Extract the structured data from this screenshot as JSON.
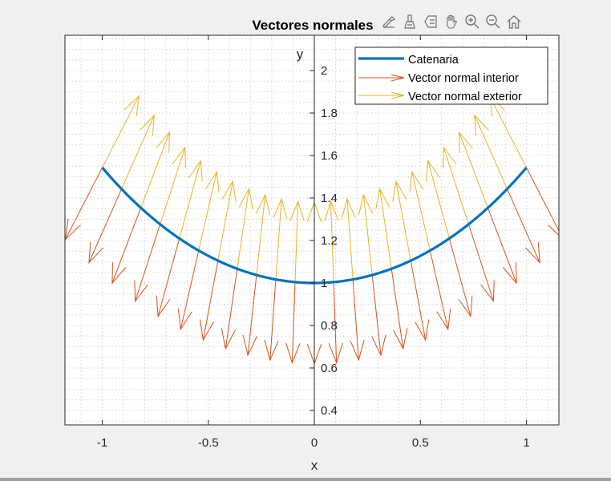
{
  "figure": {
    "toolbar": [
      {
        "name": "edit-plot-icon"
      },
      {
        "name": "brush-icon"
      },
      {
        "name": "legend-icon"
      },
      {
        "name": "pan-hand-icon"
      },
      {
        "name": "zoom-in-icon"
      },
      {
        "name": "zoom-out-icon"
      },
      {
        "name": "home-restore-view-icon"
      }
    ]
  },
  "chart_data": {
    "type": "line",
    "title": "Vectores normales",
    "xlabel": "x",
    "ylabel": "y",
    "xlim": [
      -1.176,
      1.153
    ],
    "ylim": [
      0.332,
      2.166
    ],
    "axis_location": "origin",
    "grid": {
      "major": true,
      "minor": true
    },
    "xticks": [
      -1,
      -0.5,
      0,
      0.5,
      1
    ],
    "xtick_labels": [
      "-1",
      "-0.5",
      "0",
      "0.5",
      "1"
    ],
    "yticks": [
      0.4,
      0.6,
      0.8,
      1,
      1.2,
      1.4,
      1.6,
      1.8,
      2
    ],
    "ytick_labels": [
      "0.4",
      "0.6",
      "0.8",
      "1",
      "1.2",
      "1.4",
      "1.6",
      "1.8",
      "2"
    ],
    "legend": {
      "position": "northeast",
      "entries": [
        {
          "label": "Catenaria",
          "color": "#0072bd",
          "style": "line"
        },
        {
          "label": "Vector normal interior",
          "color": "#d95319",
          "style": "arrow"
        },
        {
          "label": "Vector normal exterior",
          "color": "#edb120",
          "style": "arrow"
        }
      ]
    },
    "series": [
      {
        "name": "Catenaria",
        "function": "y = cosh(x)",
        "x_range": [
          -1,
          1
        ],
        "color": "#0072bd",
        "linewidth": 3
      },
      {
        "name": "Vector normal interior",
        "type": "quiver",
        "color": "#d95319",
        "base_x": "linspace(-1, 1, 23)",
        "base_y": "cosh(base_x)",
        "direction": "down",
        "length": 0.38,
        "dx_at_x_minus1": -0.174,
        "dx_at_x0": 0
      },
      {
        "name": "Vector normal exterior",
        "type": "quiver",
        "color": "#edb120",
        "base_x": "linspace(-1, 1, 23)",
        "base_y": "cosh(base_x)",
        "direction": "up",
        "length": 0.38,
        "dx_at_x_minus1": 0.174,
        "dx_at_x0": 0
      }
    ],
    "n_vectors": 23
  }
}
